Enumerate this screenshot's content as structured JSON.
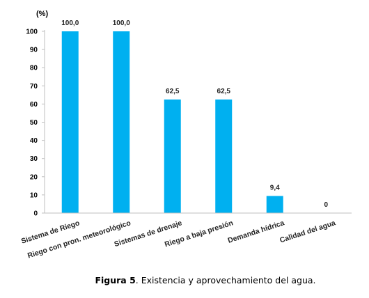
{
  "chart_data": {
    "type": "bar",
    "categories": [
      "Sistema de Riego",
      "Riego con pron. meteorológico",
      "Sistemas de drenaje",
      "Riego a baja presión",
      "Demanda hídrica",
      "Calidad del agua"
    ],
    "values": [
      100,
      100,
      62.5,
      62.5,
      9.4,
      0
    ],
    "data_labels": [
      "100,0",
      "100,0",
      "62,5",
      "62,5",
      "9,4",
      "0"
    ],
    "ylabel": "(%)",
    "ylim": [
      0,
      100
    ],
    "yticks": [
      0,
      10,
      20,
      30,
      40,
      50,
      60,
      70,
      80,
      90,
      100
    ],
    "grid": false,
    "bar_color": "#00b0f0"
  },
  "caption": {
    "prefix": "Figura 5",
    "text": ". Existencia y aprovechamiento del agua."
  }
}
